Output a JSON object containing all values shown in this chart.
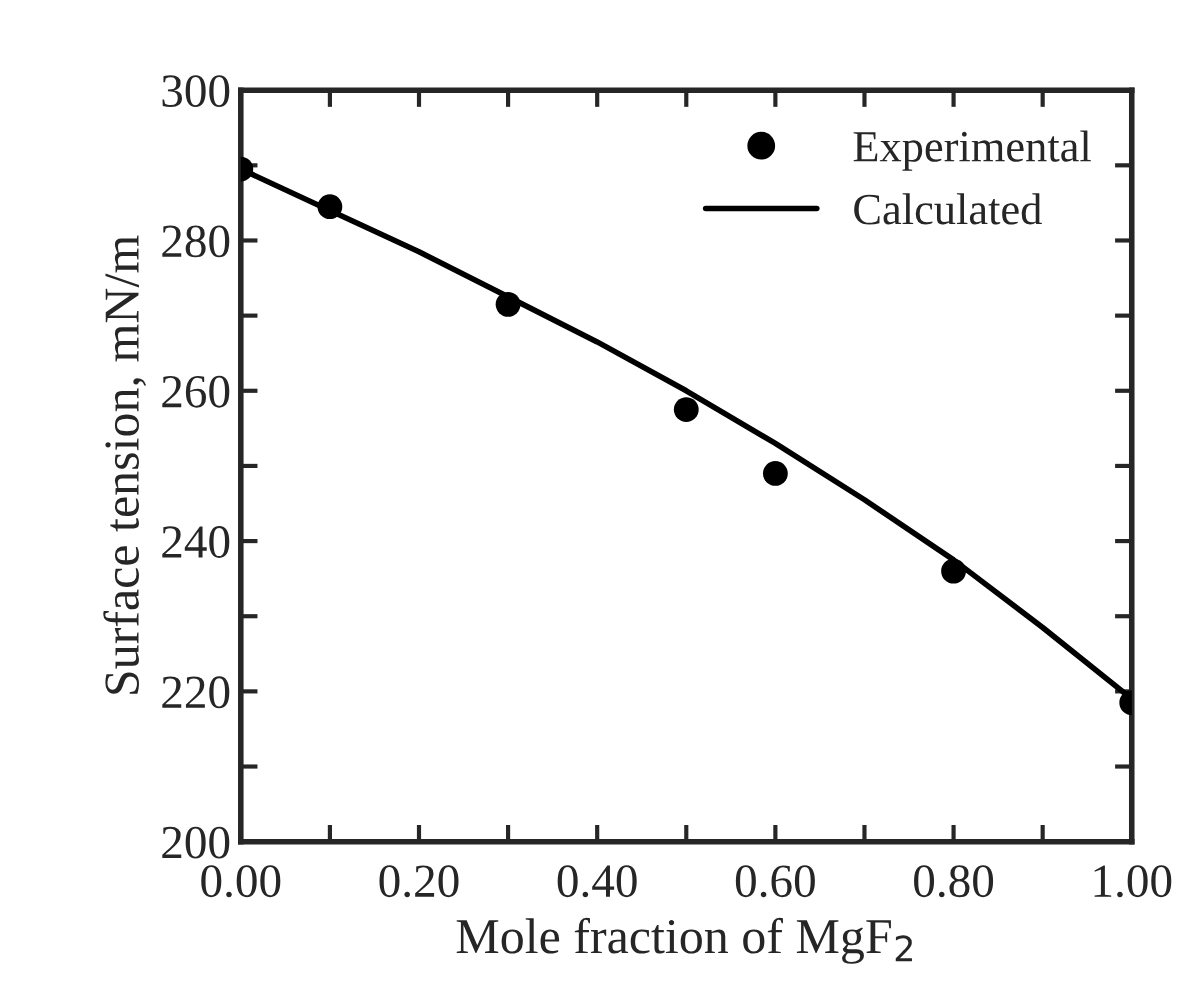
{
  "chart_data": {
    "type": "scatter",
    "xlabel": "Mole fraction of MgF$_{2}$",
    "ylabel": "Surface tension, mN/m",
    "series": [
      {
        "name": "Experimental",
        "color": "#000000",
        "marker": "circle",
        "x": [
          0.0,
          0.1,
          0.3,
          0.5,
          0.6,
          0.8,
          1.0
        ],
        "values": [
          289.5,
          284.5,
          271.5,
          257.5,
          249,
          236,
          218.5
        ]
      },
      {
        "name": "Calculated",
        "type": "line",
        "color": "#000000",
        "marker": "none",
        "line_style": "solid",
        "x": [
          0.0,
          0.1,
          0.2,
          0.3,
          0.4,
          0.5,
          0.6,
          0.7,
          0.8,
          0.9,
          1.0
        ],
        "values": [
          289.5,
          284,
          278.5,
          272.5,
          266.5,
          260,
          253,
          245.5,
          237.5,
          228.5,
          219
        ]
      }
    ],
    "xlim": [
      0,
      1
    ],
    "ylim": [
      200,
      300
    ],
    "xticks": [
      {
        "value": 0,
        "label": "0.00"
      },
      {
        "value": 0.1,
        "label": null
      },
      {
        "value": 0.2,
        "label": "0.20"
      },
      {
        "value": 0.3,
        "label": null
      },
      {
        "value": 0.4,
        "label": "0.40"
      },
      {
        "value": 0.5,
        "label": null
      },
      {
        "value": 0.6,
        "label": "0.60"
      },
      {
        "value": 0.7,
        "label": null
      },
      {
        "value": 0.8,
        "label": "0.80"
      },
      {
        "value": 0.9,
        "label": null
      },
      {
        "value": 1,
        "label": "1.00"
      }
    ],
    "yticks": [
      200,
      {
        "value": 210,
        "label": null
      },
      220,
      {
        "value": 230,
        "label": null
      },
      240,
      {
        "value": 250,
        "label": null
      },
      260,
      {
        "value": 270,
        "label": null
      },
      280,
      {
        "value": 290,
        "label": null
      },
      300
    ],
    "grid": false,
    "legend": "top right"
  }
}
